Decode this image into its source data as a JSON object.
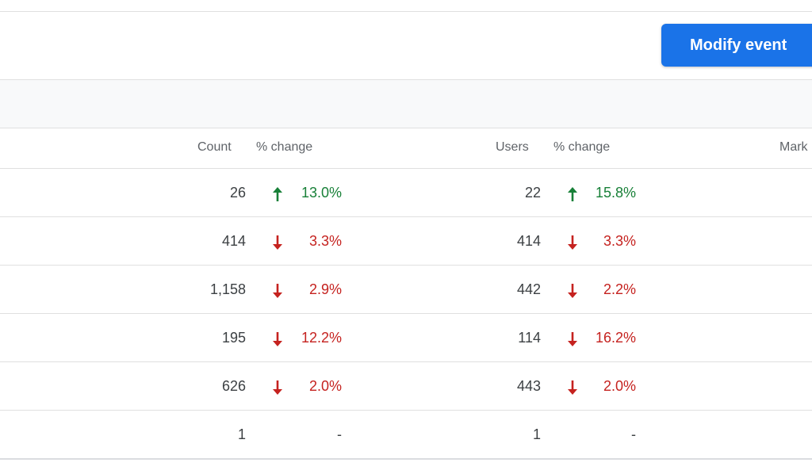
{
  "toolbar": {
    "modify_label": "Modify event"
  },
  "columns": {
    "count": "Count",
    "count_change": "% change",
    "users": "Users",
    "users_change": "% change",
    "marked": "Mark"
  },
  "rows": [
    {
      "count": "26",
      "count_change": "13.0%",
      "count_dir": "up",
      "users": "22",
      "users_change": "15.8%",
      "users_dir": "up"
    },
    {
      "count": "414",
      "count_change": "3.3%",
      "count_dir": "down",
      "users": "414",
      "users_change": "3.3%",
      "users_dir": "down"
    },
    {
      "count": "1,158",
      "count_change": "2.9%",
      "count_dir": "down",
      "users": "442",
      "users_change": "2.2%",
      "users_dir": "down"
    },
    {
      "count": "195",
      "count_change": "12.2%",
      "count_dir": "down",
      "users": "114",
      "users_change": "16.2%",
      "users_dir": "down"
    },
    {
      "count": "626",
      "count_change": "2.0%",
      "count_dir": "down",
      "users": "443",
      "users_change": "2.0%",
      "users_dir": "down"
    },
    {
      "count": "1",
      "count_change": "-",
      "count_dir": "none",
      "users": "1",
      "users_change": "-",
      "users_dir": "none"
    }
  ],
  "colors": {
    "accent": "#1a73e8",
    "increase": "#188038",
    "decrease": "#c5221f"
  },
  "icons": {
    "increase": "arrow-up-icon",
    "decrease": "arrow-down-icon"
  }
}
